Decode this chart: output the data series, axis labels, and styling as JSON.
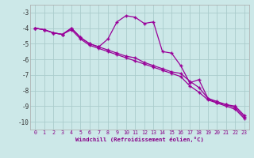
{
  "background_color": "#cce8e8",
  "grid_color": "#aacccc",
  "line_color": "#990099",
  "xlabel": "Windchill (Refroidissement éolien,°C)",
  "series1_y": [
    -4.0,
    -4.1,
    -4.3,
    -4.4,
    -4.0,
    -4.6,
    -5.0,
    -5.2,
    -4.7,
    -3.6,
    -3.2,
    -3.3,
    -3.7,
    -3.6,
    -5.5,
    -5.6,
    -6.4,
    -7.5,
    -7.3,
    -8.5,
    -8.7,
    -8.9,
    -9.0,
    -9.6
  ],
  "series2_y": [
    -4.0,
    -4.1,
    -4.3,
    -4.4,
    -4.0,
    -4.6,
    -5.0,
    -5.2,
    -5.4,
    -5.6,
    -5.8,
    -5.9,
    -6.2,
    -6.4,
    -6.6,
    -6.8,
    -6.9,
    -7.4,
    -7.8,
    -8.5,
    -8.8,
    -8.9,
    -9.1,
    -9.7
  ],
  "series3_y": [
    -4.0,
    -4.1,
    -4.3,
    -4.4,
    -4.1,
    -4.7,
    -5.1,
    -5.3,
    -5.5,
    -5.7,
    -5.9,
    -6.1,
    -6.3,
    -6.5,
    -6.7,
    -6.9,
    -7.1,
    -7.7,
    -8.1,
    -8.6,
    -8.8,
    -9.0,
    -9.2,
    -9.8
  ],
  "ylim": [
    -10.5,
    -2.5
  ],
  "yticks": [
    -10,
    -9,
    -8,
    -7,
    -6,
    -5,
    -4,
    -3
  ],
  "xticks": [
    0,
    1,
    2,
    3,
    4,
    5,
    6,
    7,
    8,
    9,
    10,
    11,
    12,
    13,
    14,
    15,
    16,
    17,
    18,
    19,
    20,
    21,
    22,
    23
  ]
}
